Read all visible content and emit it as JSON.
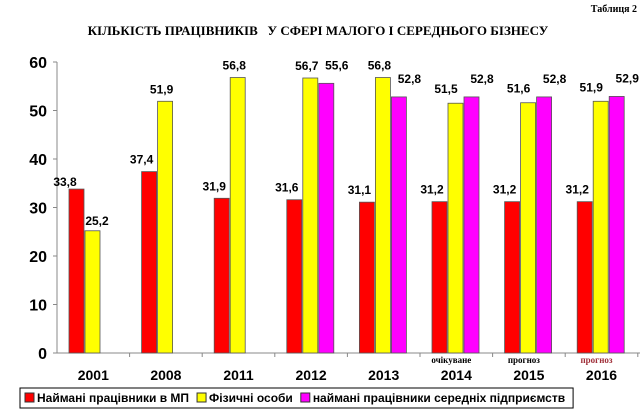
{
  "chart_data": {
    "type": "bar",
    "table_label": "Таблиця 2",
    "title": "КІЛЬКІСТЬ ПРАЦІВНИКІВ   У СФЕРІ МАЛОГО І СЕРЕДНЬОГО БІЗНЕСУ",
    "categories": [
      "2001",
      "2008",
      "2011",
      "2012",
      "2013",
      "2014",
      "2015",
      "2016"
    ],
    "category_notes": [
      "",
      "",
      "",
      "",
      "",
      "очікуване",
      "прогноз",
      "прогноз"
    ],
    "ylim": [
      0,
      60
    ],
    "yticks": [
      0,
      10,
      20,
      30,
      40,
      50,
      60
    ],
    "grid": false,
    "legend_position": "bottom",
    "series": [
      {
        "name": "Наймані працівники в МП",
        "color": "#ff0000",
        "values": [
          33.8,
          37.4,
          31.9,
          31.6,
          31.1,
          31.2,
          31.2,
          31.2
        ],
        "labels": [
          "33,8",
          "37,4",
          "31,9",
          "31,6",
          "31,1",
          "31,2",
          "31,2",
          "31,2"
        ]
      },
      {
        "name": "Фізичні особи",
        "color": "#ffff00",
        "values": [
          25.2,
          51.9,
          56.8,
          56.7,
          56.8,
          51.5,
          51.6,
          51.9
        ],
        "labels": [
          "25,2",
          "51,9",
          "56,8",
          "56,7",
          "56,8",
          "51,5",
          "51,6",
          "51,9"
        ]
      },
      {
        "name": "наймані працівники середніх підприємств",
        "color": "#ff00ff",
        "values": [
          null,
          null,
          null,
          55.6,
          52.8,
          52.8,
          52.8,
          52.9
        ],
        "labels": [
          "",
          "",
          "",
          "55,6",
          "52,8",
          "52,8",
          "52,8",
          "52,9"
        ]
      }
    ]
  }
}
